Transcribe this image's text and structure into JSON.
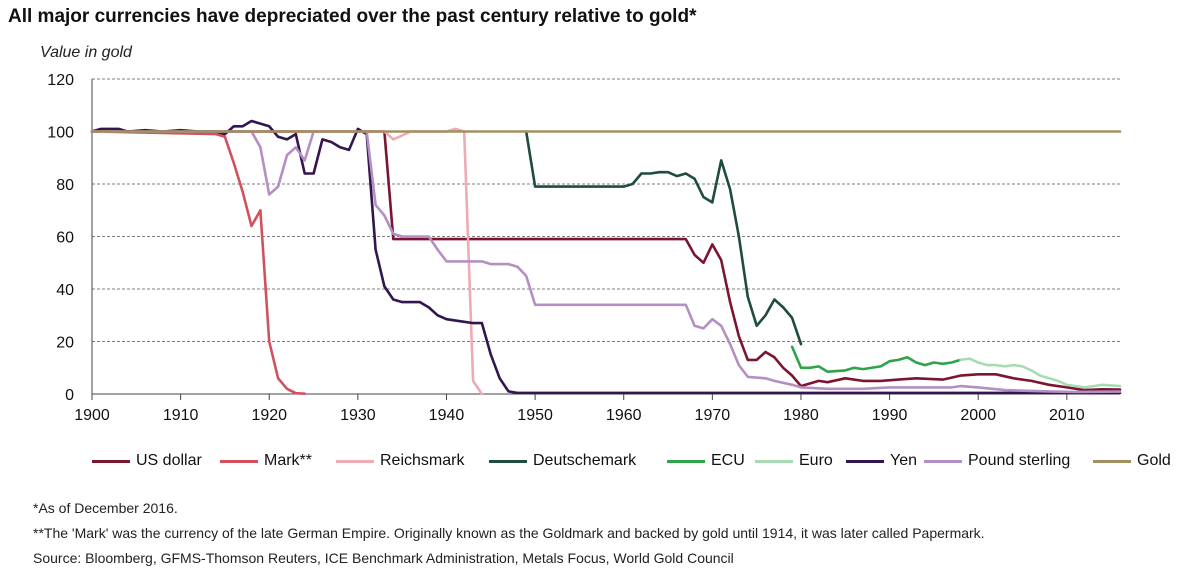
{
  "chart_data": {
    "type": "line",
    "title": "All major currencies have depreciated over the past century relative to gold*",
    "ylabel": "Value in gold",
    "xlabel": "",
    "xlim": [
      1900,
      2016
    ],
    "ylim": [
      0,
      120
    ],
    "x_ticks": [
      "1900",
      "1910",
      "1920",
      "1930",
      "1940",
      "1950",
      "1960",
      "1970",
      "1980",
      "1990",
      "2000",
      "2010"
    ],
    "y_ticks": [
      "0",
      "20",
      "40",
      "60",
      "80",
      "100",
      "120"
    ],
    "grid": "horizontal-dashed",
    "legend_position": "bottom",
    "series": [
      {
        "name": "US dollar",
        "color": "#7b1530",
        "points": [
          [
            1900,
            100
          ],
          [
            1933,
            100
          ],
          [
            1934,
            59
          ],
          [
            1967,
            59
          ],
          [
            1968,
            53
          ],
          [
            1969,
            50
          ],
          [
            1970,
            57
          ],
          [
            1971,
            51
          ],
          [
            1972,
            35
          ],
          [
            1973,
            22
          ],
          [
            1974,
            13
          ],
          [
            1975,
            13
          ],
          [
            1976,
            16
          ],
          [
            1977,
            14
          ],
          [
            1978,
            10
          ],
          [
            1979,
            7
          ],
          [
            1980,
            3
          ],
          [
            1981,
            4
          ],
          [
            1982,
            5
          ],
          [
            1983,
            4.5
          ],
          [
            1985,
            6
          ],
          [
            1987,
            5
          ],
          [
            1989,
            5
          ],
          [
            1991,
            5.5
          ],
          [
            1993,
            6
          ],
          [
            1996,
            5.5
          ],
          [
            1998,
            7
          ],
          [
            2000,
            7.5
          ],
          [
            2002,
            7.5
          ],
          [
            2004,
            6
          ],
          [
            2006,
            5
          ],
          [
            2008,
            3.5
          ],
          [
            2010,
            2.5
          ],
          [
            2012,
            1.5
          ],
          [
            2014,
            1.8
          ],
          [
            2016,
            1.7
          ]
        ]
      },
      {
        "name": "Mark**",
        "color": "#d2515e",
        "points": [
          [
            1900,
            100
          ],
          [
            1914,
            99
          ],
          [
            1915,
            98
          ],
          [
            1916,
            88
          ],
          [
            1917,
            77
          ],
          [
            1918,
            64
          ],
          [
            1919,
            70
          ],
          [
            1920,
            20
          ],
          [
            1921,
            6
          ],
          [
            1922,
            2
          ],
          [
            1923,
            0.3
          ],
          [
            1924,
            0.1
          ]
        ]
      },
      {
        "name": "Reichsmark",
        "color": "#eeabb4",
        "points": [
          [
            1924,
            100
          ],
          [
            1930,
            100
          ],
          [
            1933,
            100
          ],
          [
            1934,
            97
          ],
          [
            1936,
            100
          ],
          [
            1940,
            100
          ],
          [
            1941,
            101
          ],
          [
            1942,
            100
          ],
          [
            1943,
            5
          ],
          [
            1944,
            0
          ]
        ]
      },
      {
        "name": "Deutschemark",
        "color": "#1f4d39",
        "points": [
          [
            1949,
            100
          ],
          [
            1950,
            79
          ],
          [
            1960,
            79
          ],
          [
            1961,
            80
          ],
          [
            1962,
            84
          ],
          [
            1963,
            84
          ],
          [
            1964,
            84.5
          ],
          [
            1965,
            84.5
          ],
          [
            1966,
            83
          ],
          [
            1967,
            84
          ],
          [
            1968,
            82
          ],
          [
            1969,
            75
          ],
          [
            1970,
            73
          ],
          [
            1971,
            89
          ],
          [
            1972,
            78
          ],
          [
            1973,
            60
          ],
          [
            1974,
            37
          ],
          [
            1975,
            26
          ],
          [
            1976,
            30
          ],
          [
            1977,
            36
          ],
          [
            1978,
            33
          ],
          [
            1979,
            29
          ],
          [
            1980,
            19
          ]
        ]
      },
      {
        "name": "ECU",
        "color": "#2ea44a",
        "points": [
          [
            1979,
            18
          ],
          [
            1980,
            10
          ],
          [
            1981,
            10
          ],
          [
            1982,
            10.5
          ],
          [
            1983,
            8.5
          ],
          [
            1985,
            9
          ],
          [
            1986,
            10
          ],
          [
            1987,
            9.5
          ],
          [
            1989,
            10.5
          ],
          [
            1990,
            12.5
          ],
          [
            1991,
            13
          ],
          [
            1992,
            14
          ],
          [
            1993,
            12
          ],
          [
            1994,
            11
          ],
          [
            1995,
            12
          ],
          [
            1996,
            11.5
          ],
          [
            1997,
            12
          ],
          [
            1998,
            13
          ]
        ]
      },
      {
        "name": "Euro",
        "color": "#a6dbb3",
        "points": [
          [
            1998,
            13
          ],
          [
            1999,
            13.5
          ],
          [
            2000,
            12
          ],
          [
            2001,
            11
          ],
          [
            2002,
            11
          ],
          [
            2003,
            10.5
          ],
          [
            2004,
            11
          ],
          [
            2005,
            10.5
          ],
          [
            2006,
            9
          ],
          [
            2007,
            7
          ],
          [
            2008,
            6
          ],
          [
            2009,
            5
          ],
          [
            2010,
            3.5
          ],
          [
            2011,
            3
          ],
          [
            2012,
            2.5
          ],
          [
            2013,
            3
          ],
          [
            2014,
            3.5
          ],
          [
            2016,
            3
          ]
        ]
      },
      {
        "name": "Yen",
        "color": "#33154f",
        "points": [
          [
            1900,
            100
          ],
          [
            1901,
            101
          ],
          [
            1903,
            101
          ],
          [
            1904,
            100
          ],
          [
            1906,
            100.5
          ],
          [
            1908,
            100
          ],
          [
            1910,
            100.5
          ],
          [
            1912,
            100
          ],
          [
            1914,
            100
          ],
          [
            1915,
            99
          ],
          [
            1916,
            102
          ],
          [
            1917,
            102
          ],
          [
            1918,
            104
          ],
          [
            1919,
            103
          ],
          [
            1920,
            102
          ],
          [
            1921,
            98
          ],
          [
            1922,
            97
          ],
          [
            1923,
            99
          ],
          [
            1924,
            84
          ],
          [
            1925,
            84
          ],
          [
            1926,
            97
          ],
          [
            1927,
            96
          ],
          [
            1928,
            94
          ],
          [
            1929,
            93
          ],
          [
            1930,
            101
          ],
          [
            1931,
            99
          ],
          [
            1932,
            55
          ],
          [
            1933,
            41
          ],
          [
            1934,
            36
          ],
          [
            1935,
            35
          ],
          [
            1937,
            35
          ],
          [
            1938,
            33
          ],
          [
            1939,
            30
          ],
          [
            1940,
            28.5
          ],
          [
            1942,
            27.5
          ],
          [
            1943,
            27
          ],
          [
            1944,
            27
          ],
          [
            1945,
            15
          ],
          [
            1946,
            6
          ],
          [
            1947,
            1
          ],
          [
            1948,
            0.4
          ],
          [
            2016,
            0.4
          ]
        ]
      },
      {
        "name": "Pound sterling",
        "color": "#b48fc4",
        "points": [
          [
            1900,
            100
          ],
          [
            1913,
            100
          ],
          [
            1914,
            100
          ],
          [
            1915,
            100
          ],
          [
            1916,
            100
          ],
          [
            1917,
            100
          ],
          [
            1918,
            100
          ],
          [
            1919,
            94
          ],
          [
            1920,
            76
          ],
          [
            1921,
            79
          ],
          [
            1922,
            91
          ],
          [
            1923,
            94
          ],
          [
            1924,
            89
          ],
          [
            1925,
            100
          ],
          [
            1931,
            100
          ],
          [
            1932,
            72
          ],
          [
            1933,
            68
          ],
          [
            1934,
            61
          ],
          [
            1935,
            60
          ],
          [
            1937,
            60
          ],
          [
            1938,
            60
          ],
          [
            1939,
            55
          ],
          [
            1940,
            50.5
          ],
          [
            1944,
            50.5
          ],
          [
            1945,
            49.5
          ],
          [
            1947,
            49.5
          ],
          [
            1948,
            48.5
          ],
          [
            1949,
            45
          ],
          [
            1950,
            34
          ],
          [
            1967,
            34
          ],
          [
            1968,
            26
          ],
          [
            1969,
            25
          ],
          [
            1970,
            28.5
          ],
          [
            1971,
            26
          ],
          [
            1972,
            19
          ],
          [
            1973,
            11
          ],
          [
            1974,
            6.5
          ],
          [
            1976,
            6
          ],
          [
            1977,
            5
          ],
          [
            1979,
            3.5
          ],
          [
            1980,
            2.5
          ],
          [
            1983,
            2
          ],
          [
            1987,
            2
          ],
          [
            1990,
            2.5
          ],
          [
            1993,
            2.5
          ],
          [
            1997,
            2.5
          ],
          [
            1998,
            3
          ],
          [
            2000,
            2.5
          ],
          [
            2003,
            1.5
          ],
          [
            2006,
            1.2
          ],
          [
            2008,
            1
          ],
          [
            2011,
            0.8
          ],
          [
            2016,
            0.9
          ]
        ]
      },
      {
        "name": "Gold",
        "color": "#a39060",
        "points": [
          [
            1900,
            100
          ],
          [
            2016,
            100
          ]
        ]
      }
    ],
    "notes": [
      "*As of December 2016.",
      "**The 'Mark' was the currency of the late German Empire. Originally known as the Goldmark and backed by gold until 1914, it was later called Papermark.",
      "Source: Bloomberg, GFMS-Thomson Reuters, ICE Benchmark Administration, Metals Focus, World Gold Council"
    ]
  }
}
